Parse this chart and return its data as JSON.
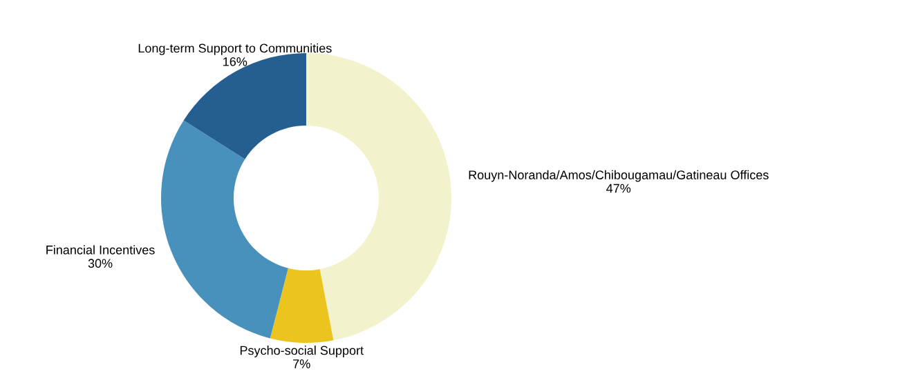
{
  "chart_data": {
    "type": "donut",
    "categories": [
      "Rouyn-Noranda/Amos/Chibougamau/Gatineau Offices",
      "Psycho-social Support",
      "Financial Incentives",
      "Long-term Support to Communities"
    ],
    "values": [
      47,
      7,
      30,
      16
    ],
    "value_labels": [
      "47%",
      "7%",
      "30%",
      "16%"
    ],
    "colors": [
      "#f2f2cc",
      "#ecc41e",
      "#4891bd",
      "#255f92"
    ],
    "legend": false
  }
}
